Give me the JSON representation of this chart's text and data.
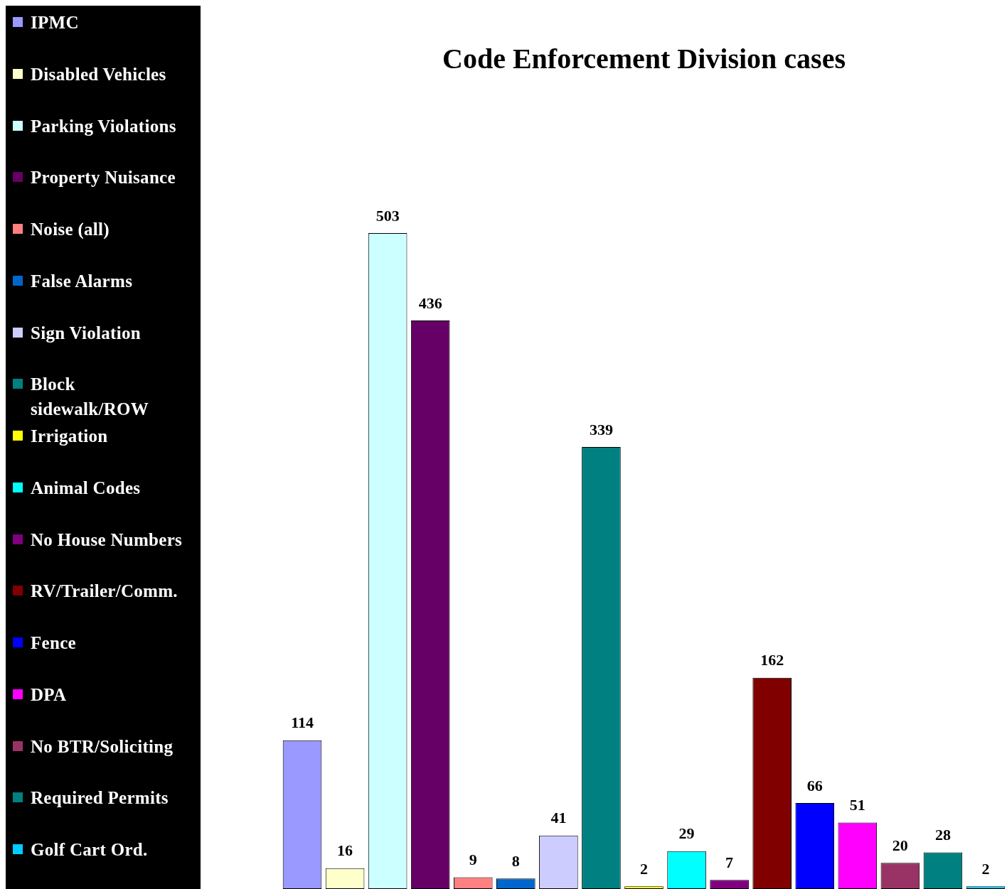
{
  "chart_data": {
    "type": "bar",
    "title": "Code Enforcement Division cases",
    "categories": [
      null
    ],
    "data_labels": true,
    "legend": "left",
    "series": [
      {
        "name": "IPMC",
        "color": "#9999ff",
        "values": [
          114
        ]
      },
      {
        "name": "Disabled Vehicles",
        "color": "#ffffcc",
        "values": [
          16
        ]
      },
      {
        "name": "Parking Violations",
        "color": "#ccffff",
        "values": [
          503
        ]
      },
      {
        "name": "Property Nuisance",
        "color": "#660066",
        "values": [
          436
        ]
      },
      {
        "name": "Noise (all)",
        "color": "#ff8080",
        "values": [
          9
        ]
      },
      {
        "name": "False Alarms",
        "color": "#0066cc",
        "values": [
          8
        ]
      },
      {
        "name": "Sign Violation",
        "color": "#ccccff",
        "values": [
          41
        ]
      },
      {
        "name": "Block sidewalk/ROW",
        "color": "#008080",
        "values": [
          339
        ]
      },
      {
        "name": "Irrigation",
        "color": "#ffff00",
        "values": [
          2
        ]
      },
      {
        "name": "Animal Codes",
        "color": "#00ffff",
        "values": [
          29
        ]
      },
      {
        "name": "No House Numbers",
        "color": "#800080",
        "values": [
          7
        ]
      },
      {
        "name": "RV/Trailer/Comm.",
        "color": "#800000",
        "values": [
          162
        ]
      },
      {
        "name": "Fence",
        "color": "#0000ff",
        "values": [
          66
        ]
      },
      {
        "name": "DPA",
        "color": "#ff00ff",
        "values": [
          51
        ]
      },
      {
        "name": "No BTR/Soliciting",
        "color": "#993366",
        "values": [
          20
        ]
      },
      {
        "name": "Required Permits",
        "color": "#008080",
        "values": [
          28
        ]
      },
      {
        "name": "Golf Cart Ord.",
        "color": "#00ccff",
        "values": [
          2
        ]
      }
    ]
  }
}
